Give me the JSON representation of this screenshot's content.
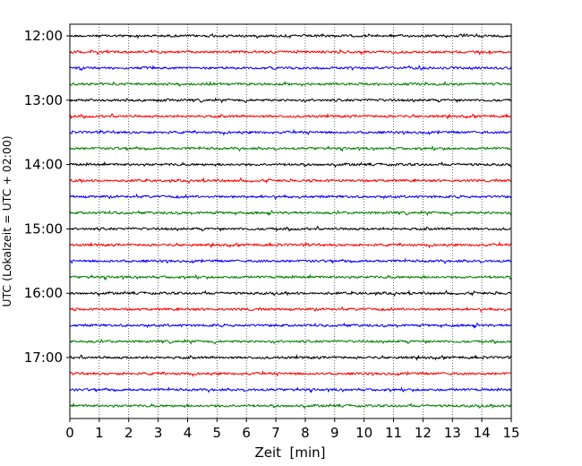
{
  "chart_data": {
    "type": "line",
    "description": "Helicorder-style seismogram: one 15-minute trace per row, rows stacked downward in time",
    "xlabel": "Zeit  [min]",
    "ylabel": "UTC (Lokalzeit = UTC + 02:00)",
    "xlim": [
      0,
      15
    ],
    "x_ticks": [
      "0",
      "1",
      "2",
      "3",
      "4",
      "5",
      "6",
      "7",
      "8",
      "9",
      "10",
      "11",
      "12",
      "13",
      "14",
      "15"
    ],
    "y_ticks": [
      "12:00",
      "13:00",
      "14:00",
      "15:00",
      "16:00",
      "17:00"
    ],
    "grid": "vertical dotted at each minute",
    "trace_colors": [
      "#000000",
      "#ff0000",
      "#0000ff",
      "#007f00"
    ],
    "rows": [
      {
        "start": "12:00",
        "color": "#000000"
      },
      {
        "start": "12:15",
        "color": "#ff0000"
      },
      {
        "start": "12:30",
        "color": "#0000ff"
      },
      {
        "start": "12:45",
        "color": "#007f00"
      },
      {
        "start": "13:00",
        "color": "#000000"
      },
      {
        "start": "13:15",
        "color": "#ff0000"
      },
      {
        "start": "13:30",
        "color": "#0000ff"
      },
      {
        "start": "13:45",
        "color": "#007f00"
      },
      {
        "start": "14:00",
        "color": "#000000"
      },
      {
        "start": "14:15",
        "color": "#ff0000"
      },
      {
        "start": "14:30",
        "color": "#0000ff"
      },
      {
        "start": "14:45",
        "color": "#007f00"
      },
      {
        "start": "15:00",
        "color": "#000000"
      },
      {
        "start": "15:15",
        "color": "#ff0000"
      },
      {
        "start": "15:30",
        "color": "#0000ff"
      },
      {
        "start": "15:45",
        "color": "#007f00"
      },
      {
        "start": "16:00",
        "color": "#000000"
      },
      {
        "start": "16:15",
        "color": "#ff0000"
      },
      {
        "start": "16:30",
        "color": "#0000ff"
      },
      {
        "start": "16:45",
        "color": "#007f00"
      },
      {
        "start": "17:00",
        "color": "#000000"
      },
      {
        "start": "17:15",
        "color": "#ff0000"
      },
      {
        "start": "17:30",
        "color": "#0000ff"
      },
      {
        "start": "17:45",
        "color": "#007f00"
      }
    ]
  }
}
